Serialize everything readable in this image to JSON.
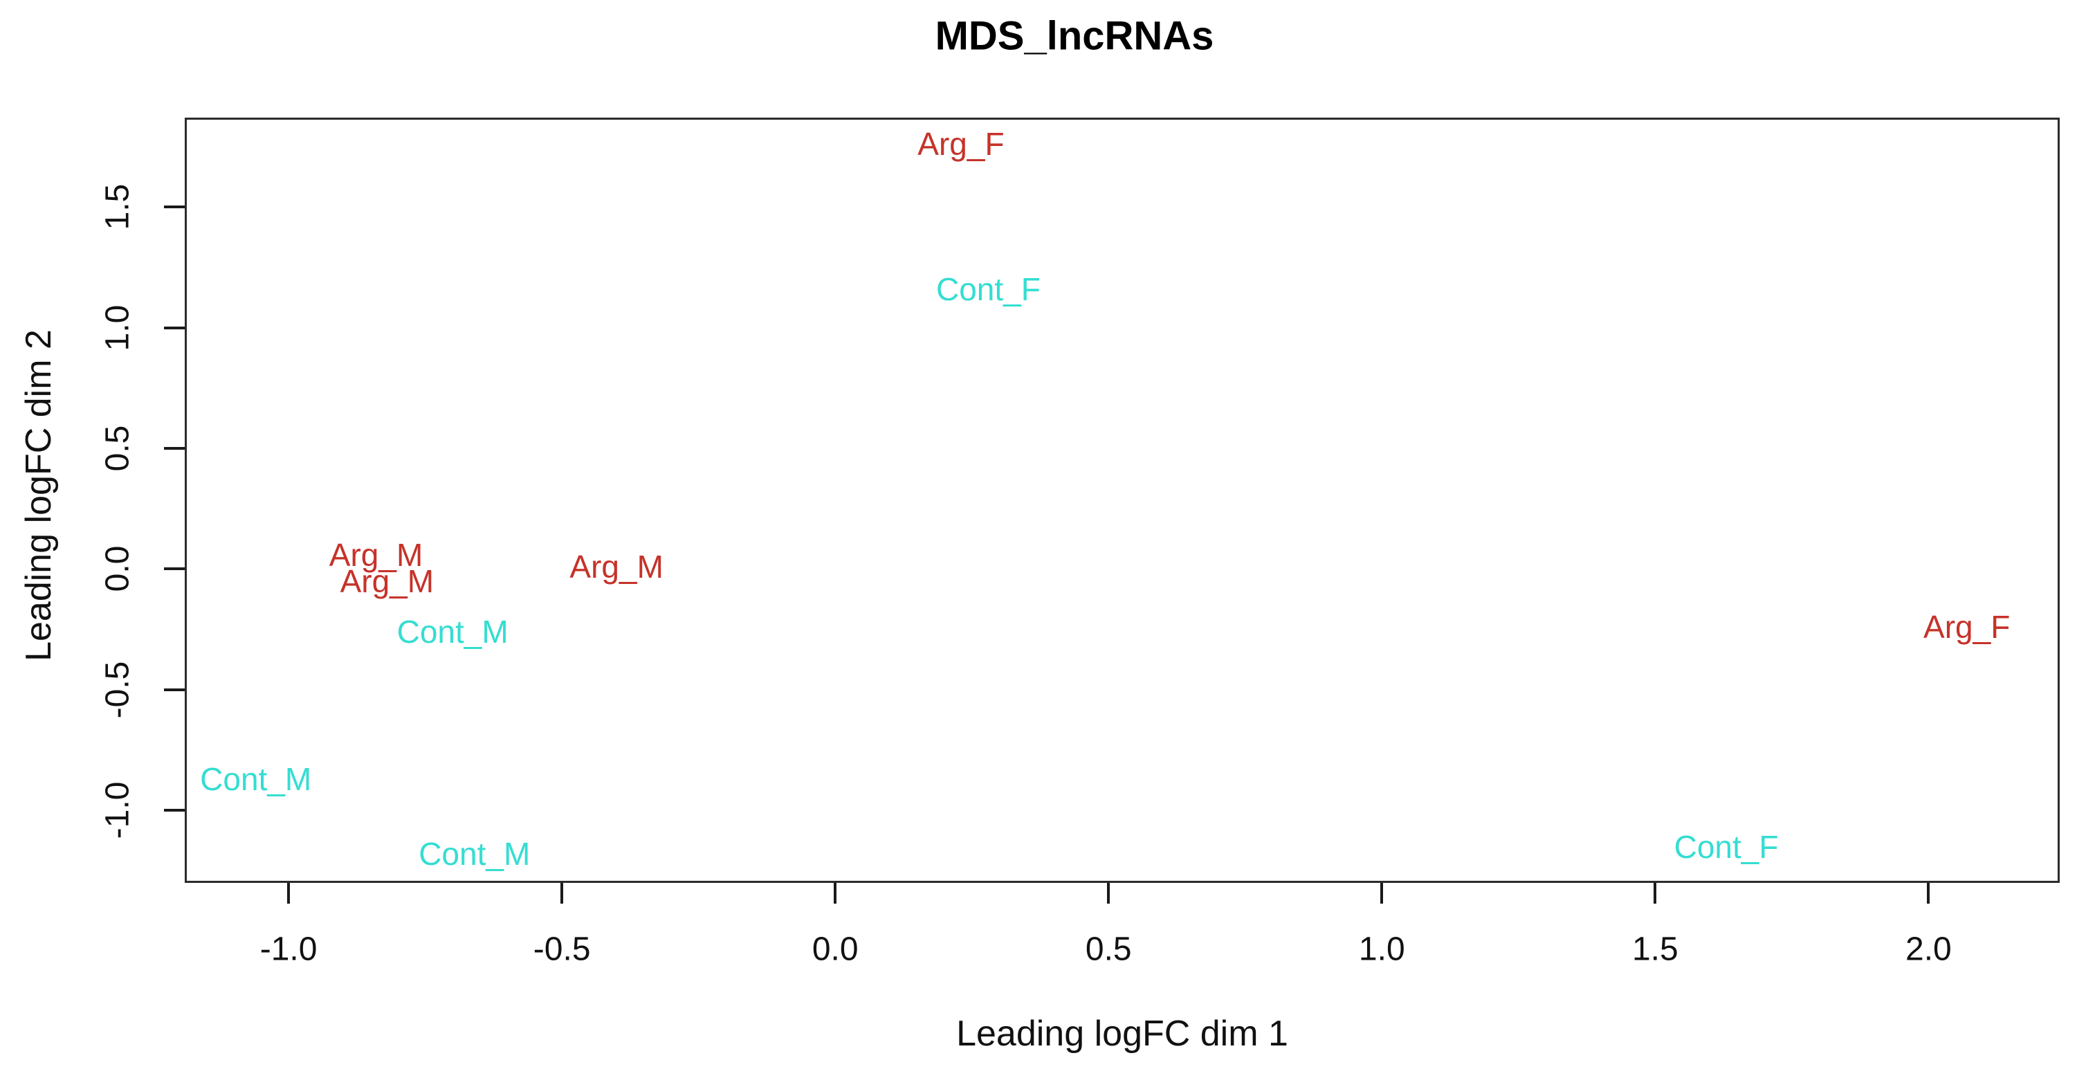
{
  "figure": {
    "background": "#ffffff",
    "box_color": "#2b2b2b",
    "text_color": "#111111"
  },
  "chart_data": {
    "type": "scatter",
    "marker": "text-label",
    "title": "MDS_lncRNAs",
    "xlabel": "Leading logFC dim 1",
    "ylabel": "Leading logFC dim 2",
    "xlim": [
      -1.19,
      2.24
    ],
    "ylim": [
      -1.3,
      1.87
    ],
    "grid": false,
    "legend": "none",
    "x_ticks": [
      -1.0,
      -0.5,
      0.0,
      0.5,
      1.0,
      1.5,
      2.0
    ],
    "x_tick_labels": [
      "-1.0",
      "-0.5",
      "0.0",
      "0.5",
      "1.0",
      "1.5",
      "2.0"
    ],
    "y_ticks": [
      -1.0,
      -0.5,
      0.0,
      0.5,
      1.0,
      1.5
    ],
    "y_tick_labels": [
      "-1.0",
      "-0.5",
      "0.0",
      "0.5",
      "1.0",
      "1.5"
    ],
    "colors": {
      "Arg": "#c5332a",
      "Cont": "#35ddd2"
    },
    "points": [
      {
        "label": "Arg_F",
        "group": "Arg",
        "x": 0.23,
        "y": 1.76
      },
      {
        "label": "Cont_F",
        "group": "Cont",
        "x": 0.28,
        "y": 1.16
      },
      {
        "label": "Arg_M",
        "group": "Arg",
        "x": -0.84,
        "y": 0.06
      },
      {
        "label": "Arg_M",
        "group": "Arg",
        "x": -0.82,
        "y": -0.05
      },
      {
        "label": "Arg_M",
        "group": "Arg",
        "x": -0.4,
        "y": 0.01
      },
      {
        "label": "Cont_M",
        "group": "Cont",
        "x": -0.7,
        "y": -0.26
      },
      {
        "label": "Cont_M",
        "group": "Cont",
        "x": -1.06,
        "y": -0.87
      },
      {
        "label": "Cont_M",
        "group": "Cont",
        "x": -0.66,
        "y": -1.18
      },
      {
        "label": "Arg_F",
        "group": "Arg",
        "x": 2.07,
        "y": -0.24
      },
      {
        "label": "Cont_F",
        "group": "Cont",
        "x": 1.63,
        "y": -1.15
      }
    ]
  }
}
